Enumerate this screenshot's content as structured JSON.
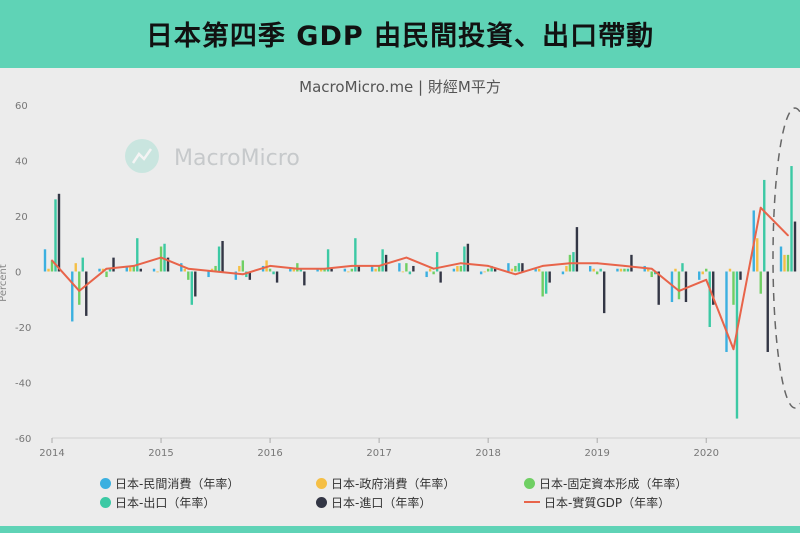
{
  "headline": "日本第四季 GDP 由民間投資、出口帶動",
  "colors": {
    "private_consumption": "#3bb0e0",
    "gov_consumption": "#f5bf45",
    "fixed_capital": "#6fcf63",
    "exports": "#3cc9a4",
    "imports": "#333645",
    "real_gdp": "#e8644a",
    "header_bg": "#5fd3b6",
    "panel_bg": "#ececec"
  },
  "chart_data": {
    "type": "bar",
    "title": "MacroMicro.me | 財經M平方",
    "watermark": "MacroMicro",
    "ylabel": "Percent",
    "ylim": [
      -60,
      60
    ],
    "yticks": [
      -60,
      -40,
      -20,
      0,
      20,
      40,
      60
    ],
    "xlim": [
      2014.0,
      2020.86
    ],
    "xticks": [
      "2014",
      "2015",
      "2016",
      "2017",
      "2018",
      "2019",
      "2020"
    ],
    "grid": false,
    "legend_position": "bottom",
    "quarters": [
      "2014-Q1",
      "2014-Q2",
      "2014-Q3",
      "2014-Q4",
      "2015-Q1",
      "2015-Q2",
      "2015-Q3",
      "2015-Q4",
      "2016-Q1",
      "2016-Q2",
      "2016-Q3",
      "2016-Q4",
      "2017-Q1",
      "2017-Q2",
      "2017-Q3",
      "2017-Q4",
      "2018-Q1",
      "2018-Q2",
      "2018-Q3",
      "2018-Q4",
      "2019-Q1",
      "2019-Q2",
      "2019-Q3",
      "2019-Q4",
      "2020-Q1",
      "2020-Q2",
      "2020-Q3",
      "2020-Q4"
    ],
    "x": [
      2014.0,
      2014.25,
      2014.5,
      2014.75,
      2015.0,
      2015.25,
      2015.5,
      2015.75,
      2016.0,
      2016.25,
      2016.5,
      2016.75,
      2017.0,
      2017.25,
      2017.5,
      2017.75,
      2018.0,
      2018.25,
      2018.5,
      2018.75,
      2019.0,
      2019.25,
      2019.5,
      2019.75,
      2020.0,
      2020.25,
      2020.5,
      2020.75
    ],
    "series": [
      {
        "name": "日本-民間消費（年率）",
        "key": "private_consumption",
        "values": [
          8,
          -18,
          1,
          2,
          1,
          3,
          -2,
          -3,
          2,
          1,
          1,
          1,
          2,
          3,
          -2,
          1,
          -1,
          3,
          1,
          -1,
          2,
          1,
          2,
          -11,
          -3,
          -29,
          22,
          9
        ]
      },
      {
        "name": "日本-政府消費（年率）",
        "key": "gov_consumption",
        "values": [
          1,
          3,
          1,
          2,
          0,
          1,
          1,
          2,
          4,
          1,
          1,
          0,
          1,
          0,
          1,
          2,
          0,
          1,
          1,
          2,
          1,
          1,
          1,
          1,
          -1,
          1,
          12,
          6
        ]
      },
      {
        "name": "日本-固定資本形成（年率）",
        "key": "fixed_capital",
        "values": [
          4,
          -12,
          -2,
          2,
          9,
          -3,
          2,
          4,
          1,
          3,
          1,
          1,
          2,
          3,
          -1,
          2,
          1,
          2,
          -9,
          6,
          -1,
          1,
          -2,
          -10,
          1,
          -12,
          -8,
          6
        ]
      },
      {
        "name": "日本-出口（年率）",
        "key": "exports",
        "values": [
          26,
          5,
          1,
          12,
          10,
          -12,
          9,
          -2,
          -1,
          1,
          8,
          12,
          8,
          -1,
          7,
          9,
          2,
          3,
          -8,
          7,
          1,
          1,
          -1,
          3,
          -20,
          -53,
          33,
          38
        ]
      },
      {
        "name": "日本-進口（年率）",
        "key": "imports",
        "values": [
          28,
          -16,
          5,
          1,
          5,
          -9,
          11,
          -3,
          -4,
          -5,
          1,
          2,
          6,
          2,
          -4,
          10,
          1,
          3,
          -4,
          16,
          -15,
          6,
          -12,
          -11,
          -12,
          -3,
          -29,
          18
        ]
      },
      {
        "name": "日本-實質GDP（年率）",
        "key": "real_gdp",
        "values": [
          4,
          -7,
          1,
          2,
          5,
          1,
          0,
          -1,
          2,
          1,
          1,
          2,
          2,
          5,
          1,
          3,
          2,
          -1,
          2,
          3,
          3,
          2,
          1,
          -7,
          -3,
          -28,
          23,
          13
        ]
      }
    ]
  },
  "legend": [
    {
      "label": "日本-民間消費（年率）",
      "color_key": "private_consumption",
      "kind": "dot"
    },
    {
      "label": "日本-政府消費（年率）",
      "color_key": "gov_consumption",
      "kind": "dot"
    },
    {
      "label": "日本-固定資本形成（年率）",
      "color_key": "fixed_capital",
      "kind": "dot"
    },
    {
      "label": "日本-出口（年率）",
      "color_key": "exports",
      "kind": "dot"
    },
    {
      "label": "日本-進口（年率）",
      "color_key": "imports",
      "kind": "dot"
    },
    {
      "label": "日本-實質GDP（年率）",
      "color_key": "real_gdp",
      "kind": "line"
    }
  ]
}
